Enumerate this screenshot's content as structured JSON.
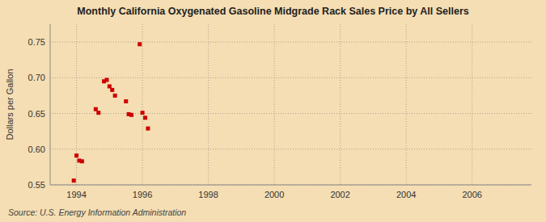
{
  "chart_data": {
    "type": "scatter",
    "title": "Monthly California Oxygenated Gasoline Midgrade Rack Sales Price by All Sellers",
    "ylabel": "Dollars per Gallon",
    "source": "Source: U.S. Energy Information Administration",
    "x": [
      1993.917,
      1994.0,
      1994.083,
      1994.167,
      1994.583,
      1994.667,
      1994.833,
      1994.917,
      1995.0,
      1995.083,
      1995.167,
      1995.5,
      1995.583,
      1995.667,
      1995.917,
      1996.0,
      1996.083,
      1996.167
    ],
    "values": [
      0.556,
      0.591,
      0.584,
      0.583,
      0.656,
      0.651,
      0.695,
      0.697,
      0.688,
      0.683,
      0.675,
      0.667,
      0.649,
      0.648,
      0.747,
      0.651,
      0.644,
      0.629
    ],
    "color": "#cc0000",
    "marker": "square",
    "xlim": [
      1993.2,
      2007.8
    ],
    "ylim": [
      0.55,
      0.775
    ],
    "xticks": [
      1994,
      1996,
      1998,
      2000,
      2002,
      2004,
      2006
    ],
    "yticks": [
      0.55,
      {
        "value": 0.6,
        "label": "0.60"
      },
      0.65,
      {
        "value": 0.7,
        "label": "0.70"
      },
      0.75
    ],
    "grid": true
  }
}
